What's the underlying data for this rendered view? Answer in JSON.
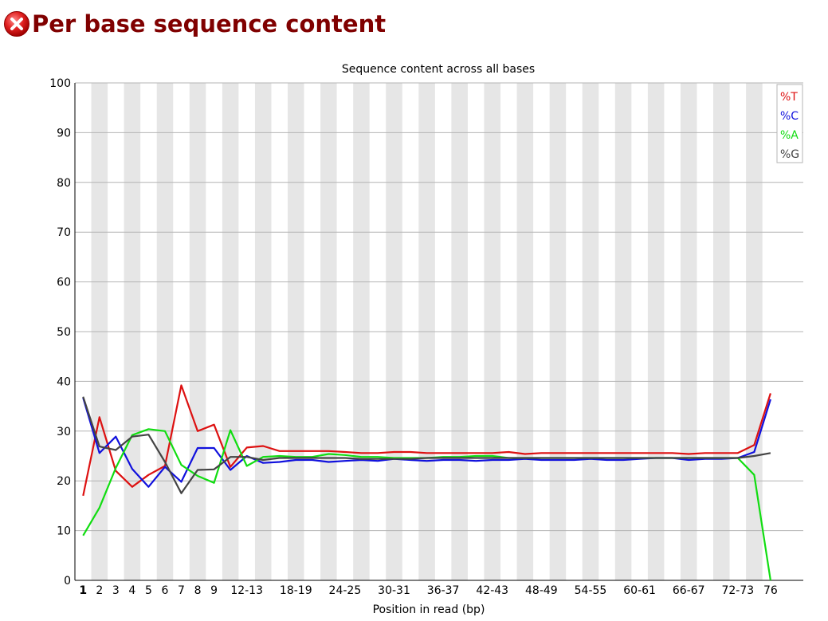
{
  "header": {
    "title": "Per base sequence content",
    "status_icon": "error-icon",
    "status_color": "#d32f2f"
  },
  "chart_data": {
    "type": "line",
    "title": "Sequence content across all bases",
    "xlabel": "Position in read (bp)",
    "ylabel": "",
    "ylim": [
      0,
      100
    ],
    "yticks": [
      0,
      10,
      20,
      30,
      40,
      50,
      60,
      70,
      80,
      90,
      100
    ],
    "grid": true,
    "legend_position": "top-right",
    "categories": [
      "1",
      "2",
      "3",
      "4",
      "5",
      "6",
      "7",
      "8",
      "9",
      "10-11",
      "12-13",
      "14-15",
      "16-17",
      "18-19",
      "20-21",
      "22-23",
      "24-25",
      "26-27",
      "28-29",
      "30-31",
      "32-33",
      "34-35",
      "36-37",
      "38-39",
      "40-41",
      "42-43",
      "44-45",
      "46-47",
      "48-49",
      "50-51",
      "52-53",
      "54-55",
      "56-57",
      "58-59",
      "60-61",
      "62-63",
      "64-65",
      "66-67",
      "68-69",
      "70-71",
      "72-73",
      "74-75",
      "76"
    ],
    "tick_labels": [
      "1",
      "2",
      "3",
      "4",
      "5",
      "6",
      "7",
      "8",
      "9",
      "",
      "12-13",
      "",
      "",
      "18-19",
      "",
      "",
      "24-25",
      "",
      "",
      "30-31",
      "",
      "",
      "36-37",
      "",
      "",
      "42-43",
      "",
      "",
      "48-49",
      "",
      "",
      "54-55",
      "",
      "",
      "60-61",
      "",
      "",
      "66-67",
      "",
      "",
      "72-73",
      "",
      "76"
    ],
    "series": [
      {
        "name": "%T",
        "color": "#dd1111",
        "values": [
          17.0,
          32.8,
          22.0,
          18.8,
          21.2,
          23.0,
          39.2,
          30.0,
          31.3,
          22.8,
          26.7,
          27.0,
          26.0,
          26.0,
          26.0,
          26.0,
          25.8,
          25.6,
          25.6,
          25.8,
          25.8,
          25.6,
          25.6,
          25.6,
          25.6,
          25.6,
          25.8,
          25.4,
          25.6,
          25.6,
          25.6,
          25.6,
          25.6,
          25.6,
          25.6,
          25.6,
          25.6,
          25.4,
          25.6,
          25.6,
          25.6,
          27.2,
          37.6
        ]
      },
      {
        "name": "%C",
        "color": "#1111dd",
        "values": [
          36.7,
          25.6,
          28.9,
          22.4,
          18.8,
          22.8,
          19.8,
          26.6,
          26.6,
          22.2,
          25.0,
          23.6,
          23.8,
          24.2,
          24.2,
          23.8,
          24.0,
          24.2,
          24.0,
          24.4,
          24.2,
          24.0,
          24.2,
          24.2,
          24.0,
          24.2,
          24.2,
          24.4,
          24.2,
          24.2,
          24.2,
          24.4,
          24.2,
          24.2,
          24.4,
          24.6,
          24.6,
          24.2,
          24.4,
          24.4,
          24.6,
          25.8,
          36.4
        ]
      },
      {
        "name": "%A",
        "color": "#11dd11",
        "values": [
          9.0,
          14.6,
          22.6,
          29.2,
          30.4,
          30.0,
          23.2,
          21.0,
          19.6,
          30.2,
          23.0,
          24.8,
          25.0,
          24.8,
          24.8,
          25.4,
          25.2,
          24.8,
          24.8,
          24.6,
          24.6,
          24.6,
          24.8,
          24.8,
          25.0,
          25.0,
          24.6,
          24.6,
          24.6,
          24.6,
          24.6,
          24.6,
          24.6,
          24.6,
          24.6,
          24.6,
          24.6,
          24.6,
          24.6,
          24.6,
          24.6,
          21.2,
          0.0
        ]
      },
      {
        "name": "%G",
        "color": "#444444",
        "values": [
          36.9,
          26.9,
          26.2,
          28.9,
          29.3,
          23.8,
          17.5,
          22.2,
          22.3,
          24.8,
          24.8,
          24.2,
          24.6,
          24.6,
          24.6,
          24.6,
          24.6,
          24.4,
          24.4,
          24.4,
          24.4,
          24.6,
          24.6,
          24.6,
          24.6,
          24.6,
          24.6,
          24.6,
          24.6,
          24.6,
          24.6,
          24.6,
          24.6,
          24.6,
          24.6,
          24.6,
          24.6,
          24.6,
          24.6,
          24.6,
          24.6,
          25.0,
          25.6
        ]
      }
    ]
  }
}
